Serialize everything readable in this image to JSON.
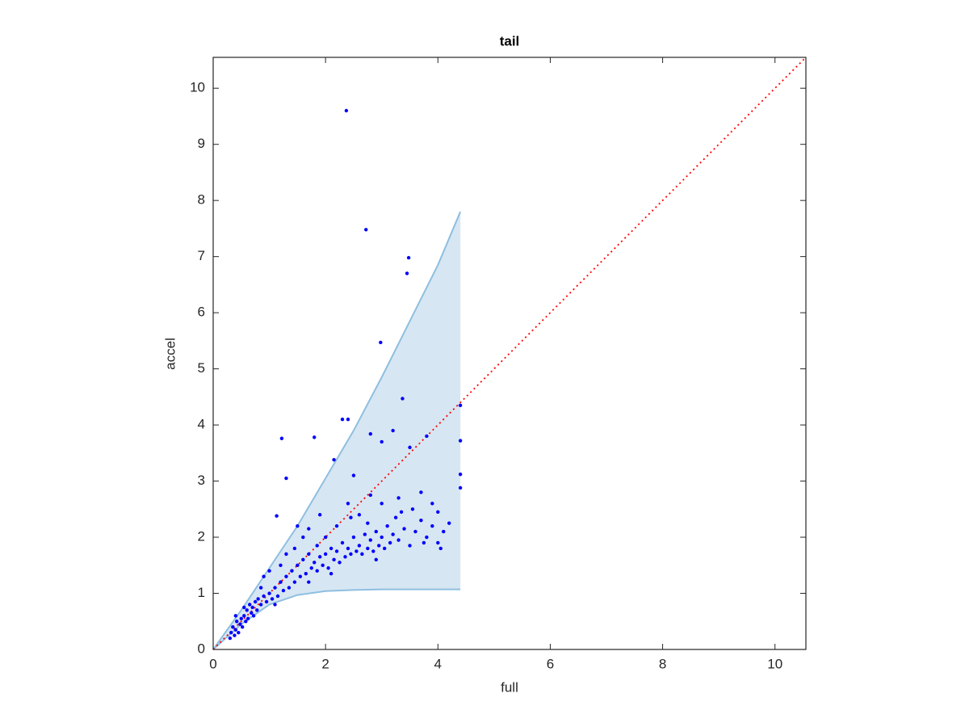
{
  "chart_data": {
    "type": "scatter",
    "title": "tail",
    "x_label": "full",
    "y_label": "accel",
    "xlim": [
      0,
      10.55
    ],
    "ylim": [
      0,
      10.55
    ],
    "xticks": [
      0,
      2,
      4,
      6,
      8,
      10
    ],
    "yticks": [
      0,
      1,
      2,
      3,
      4,
      5,
      6,
      7,
      8,
      9,
      10
    ],
    "band": {
      "color": "#d7e6f3",
      "edge_color": "#8ebfe0",
      "x": [
        0,
        0.5,
        1,
        1.5,
        2,
        2.5,
        3,
        3.5,
        4,
        4.4
      ],
      "lower": [
        0,
        0.45,
        0.8,
        0.97,
        1.04,
        1.06,
        1.07,
        1.07,
        1.07,
        1.07
      ],
      "upper": [
        0,
        0.7,
        1.45,
        2.2,
        3.05,
        3.9,
        4.85,
        5.85,
        6.85,
        7.8
      ]
    },
    "reference_line": {
      "color": "#ff0000",
      "x": [
        0,
        10.55
      ],
      "y": [
        0,
        10.55
      ]
    },
    "series": [
      {
        "color": "#0000ff",
        "x": [
          0.3,
          0.32,
          0.35,
          0.38,
          0.4,
          0.42,
          0.45,
          0.48,
          0.5,
          0.52,
          0.55,
          0.58,
          0.6,
          0.62,
          0.65,
          0.68,
          0.7,
          0.72,
          0.75,
          0.78,
          0.8,
          0.85,
          0.9,
          0.95,
          1.0,
          1.05,
          1.1,
          1.15,
          1.2,
          1.25,
          1.3,
          1.35,
          1.4,
          1.45,
          1.5,
          1.55,
          1.6,
          1.65,
          1.7,
          1.75,
          1.8,
          1.85,
          1.9,
          1.95,
          2.0,
          2.05,
          2.1,
          2.15,
          2.2,
          2.25,
          2.3,
          2.35,
          2.4,
          2.45,
          2.5,
          2.55,
          2.6,
          2.65,
          2.7,
          2.75,
          2.8,
          2.85,
          2.9,
          2.95,
          3.0,
          3.05,
          3.1,
          3.15,
          3.2,
          3.3,
          3.4,
          3.5,
          3.6,
          3.7,
          3.8,
          3.9,
          4.0,
          4.1,
          3.55,
          3.0,
          2.6,
          2.2,
          1.6,
          1.0,
          1.3,
          0.9,
          1.9,
          2.4,
          2.8,
          3.3,
          3.7,
          3.9,
          4.0,
          1.5,
          2.0,
          1.1,
          1.2,
          1.45,
          1.7,
          3.25,
          2.45,
          3.75,
          4.05,
          2.9,
          2.1,
          1.7,
          0.85,
          0.55,
          0.4,
          3.35,
          2.75,
          1.85,
          2.37,
          2.72,
          3.48,
          3.45,
          2.98,
          3.37,
          1.22,
          1.8,
          2.3,
          2.4,
          2.8,
          3.2,
          4.4,
          4.4,
          4.4,
          4.4,
          2.5,
          2.15,
          1.3,
          3.0,
          3.8,
          4.2,
          3.5,
          1.13
        ],
        "values": [
          0.2,
          0.3,
          0.4,
          0.25,
          0.35,
          0.5,
          0.3,
          0.45,
          0.55,
          0.4,
          0.6,
          0.5,
          0.7,
          0.55,
          0.8,
          0.65,
          0.75,
          0.6,
          0.85,
          0.7,
          0.9,
          0.8,
          0.95,
          0.85,
          1.0,
          0.9,
          1.1,
          0.95,
          1.2,
          1.05,
          1.3,
          1.1,
          1.4,
          1.2,
          1.5,
          1.3,
          1.6,
          1.35,
          1.7,
          1.45,
          1.55,
          1.4,
          1.65,
          1.5,
          1.7,
          1.45,
          1.8,
          1.6,
          1.75,
          1.55,
          1.9,
          1.65,
          1.8,
          1.7,
          2.0,
          1.75,
          1.85,
          1.7,
          2.05,
          1.8,
          1.95,
          1.75,
          2.1,
          1.85,
          2.0,
          1.8,
          2.2,
          1.9,
          2.05,
          1.95,
          2.15,
          1.85,
          2.1,
          2.3,
          2.0,
          2.2,
          1.9,
          2.1,
          2.5,
          2.6,
          2.4,
          2.2,
          2.0,
          1.4,
          1.7,
          1.3,
          2.4,
          2.6,
          2.75,
          2.7,
          2.8,
          2.6,
          2.45,
          2.2,
          2.0,
          0.8,
          1.5,
          1.8,
          2.15,
          2.35,
          2.35,
          1.9,
          1.8,
          1.6,
          1.35,
          1.2,
          1.1,
          0.75,
          0.6,
          2.45,
          2.25,
          1.85,
          9.6,
          7.48,
          6.98,
          6.7,
          5.47,
          4.47,
          3.76,
          3.78,
          4.1,
          4.1,
          3.84,
          3.9,
          4.35,
          3.72,
          3.12,
          2.88,
          3.1,
          3.38,
          3.05,
          3.7,
          3.8,
          2.25,
          3.6,
          2.38
        ]
      }
    ]
  }
}
